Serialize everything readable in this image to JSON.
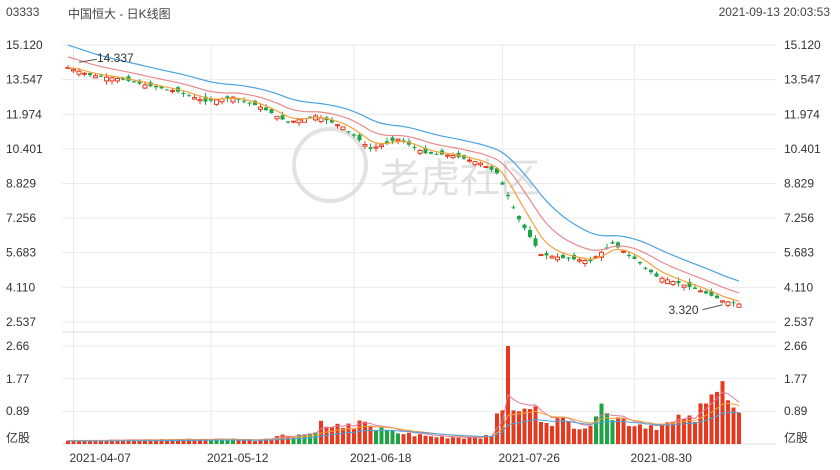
{
  "header": {
    "code": "03333",
    "title": "中国恒大 - 日K线图",
    "datetime": "2021-09-13 20:03:53"
  },
  "watermark": "老虎社区",
  "colors": {
    "up": "#e53a1f",
    "down": "#1da545",
    "ma5": "#f2a23c",
    "ma10": "#e88a8a",
    "ma20": "#4ba3e0",
    "vol_ma1": "#e07a9a",
    "vol_ma2": "#f2a23c",
    "vol_ma3": "#4ba3e0",
    "grid": "#eaeaea"
  },
  "chart_data": [
    {
      "type": "candlestick",
      "price_ticks": [
        "15.120",
        "13.547",
        "11.974",
        "10.401",
        "8.829",
        "7.256",
        "5.683",
        "4.110",
        "2.537"
      ],
      "ylim": [
        2.537,
        15.12
      ],
      "x_labels": [
        "2021-04-07",
        "2021-05-12",
        "2021-06-18",
        "2021-07-26",
        "2021-08-30"
      ],
      "x_label_index": [
        1,
        26,
        52,
        79,
        103
      ],
      "annotations": [
        {
          "label": "14.337",
          "index": 2,
          "value": 14.337
        },
        {
          "label": "3.320",
          "index": 119,
          "value": 3.32
        }
      ],
      "anchors": [
        [
          0,
          14.1
        ],
        [
          4,
          13.75
        ],
        [
          9,
          13.6
        ],
        [
          15,
          13.25
        ],
        [
          20,
          13.0
        ],
        [
          25,
          12.55
        ],
        [
          30,
          12.75
        ],
        [
          35,
          12.3
        ],
        [
          40,
          11.6
        ],
        [
          45,
          11.9
        ],
        [
          50,
          11.4
        ],
        [
          55,
          10.4
        ],
        [
          60,
          10.85
        ],
        [
          65,
          10.2
        ],
        [
          70,
          10.1
        ],
        [
          75,
          9.75
        ],
        [
          78,
          9.3
        ],
        [
          82,
          7.2
        ],
        [
          86,
          5.6
        ],
        [
          90,
          5.45
        ],
        [
          95,
          5.3
        ],
        [
          99,
          6.1
        ],
        [
          103,
          5.4
        ],
        [
          107,
          4.6
        ],
        [
          111,
          4.3
        ],
        [
          115,
          3.95
        ],
        [
          119,
          3.5
        ],
        [
          122,
          3.35
        ]
      ],
      "ma_start": {
        "ma5": 14.1,
        "ma10": 14.45,
        "ma20": 14.75
      }
    },
    {
      "type": "bar",
      "name": "volume",
      "unit": "亿股",
      "y_ticks": [
        "2.66",
        "1.77",
        "0.89"
      ],
      "ylim": [
        0,
        2.66
      ],
      "anchors": [
        [
          0,
          0.11
        ],
        [
          10,
          0.1
        ],
        [
          20,
          0.12
        ],
        [
          30,
          0.13
        ],
        [
          34,
          0.1
        ],
        [
          38,
          0.22
        ],
        [
          44,
          0.28
        ],
        [
          46,
          0.55
        ],
        [
          48,
          0.42
        ],
        [
          50,
          0.55
        ],
        [
          52,
          0.35
        ],
        [
          54,
          0.7
        ],
        [
          56,
          0.4
        ],
        [
          60,
          0.3
        ],
        [
          66,
          0.2
        ],
        [
          72,
          0.18
        ],
        [
          77,
          0.2
        ],
        [
          78,
          0.95
        ],
        [
          79,
          1.05
        ],
        [
          80,
          2.66
        ],
        [
          81,
          1.05
        ],
        [
          82,
          0.8
        ],
        [
          84,
          1.0
        ],
        [
          86,
          0.75
        ],
        [
          88,
          0.65
        ],
        [
          90,
          0.6
        ],
        [
          92,
          0.55
        ],
        [
          94,
          0.5
        ],
        [
          96,
          0.6
        ],
        [
          97,
          1.45
        ],
        [
          99,
          0.75
        ],
        [
          103,
          0.55
        ],
        [
          107,
          0.5
        ],
        [
          110,
          0.55
        ],
        [
          112,
          0.75
        ],
        [
          114,
          0.55
        ],
        [
          116,
          1.45
        ],
        [
          117,
          1.65
        ],
        [
          118,
          1.55
        ],
        [
          119,
          1.7
        ],
        [
          120,
          1.05
        ],
        [
          121,
          0.95
        ],
        [
          122,
          0.75
        ]
      ]
    }
  ]
}
